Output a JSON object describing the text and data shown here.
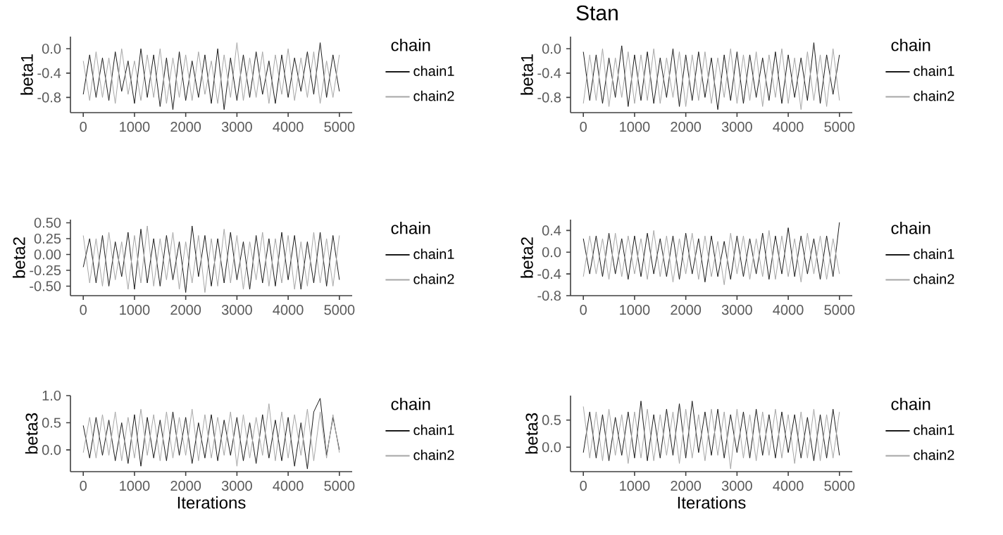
{
  "chart_data": [
    {
      "type": "line",
      "ylabel": "beta1",
      "legend_title": "chain",
      "legend": "right",
      "grid": false,
      "marker": "none",
      "line_style": "solid",
      "xlim": [
        -250,
        5250
      ],
      "ylim": [
        -1.05,
        0.2
      ],
      "xticks": [
        0,
        1000,
        2000,
        3000,
        4000,
        5000
      ],
      "yticks": [
        {
          "value": 0,
          "label": "0.0"
        },
        -0.4,
        -0.8
      ],
      "x": [
        0,
        125,
        250,
        375,
        500,
        625,
        750,
        875,
        1000,
        1125,
        1250,
        1375,
        1500,
        1625,
        1750,
        1875,
        2000,
        2125,
        2250,
        2375,
        2500,
        2625,
        2750,
        2875,
        3000,
        3125,
        3250,
        3375,
        3500,
        3625,
        3750,
        3875,
        4000,
        4125,
        4250,
        4375,
        4500,
        4625,
        4750,
        4875,
        5000
      ],
      "series": [
        {
          "name": "chain1",
          "color": "#1a1a1a",
          "values": [
            -0.75,
            -0.1,
            -0.8,
            -0.15,
            -0.85,
            -0.05,
            -0.7,
            -0.2,
            -0.9,
            0.0,
            -0.8,
            -0.1,
            -0.95,
            -0.15,
            -1.0,
            -0.05,
            -0.85,
            -0.2,
            -0.8,
            -0.1,
            -0.9,
            0.0,
            -1.0,
            -0.15,
            -0.85,
            -0.1,
            -0.8,
            -0.05,
            -0.75,
            -0.2,
            -0.9,
            -0.1,
            -0.8,
            -0.15,
            -0.7,
            -0.05,
            -0.75,
            0.1,
            -0.8,
            -0.1,
            -0.7
          ]
        },
        {
          "name": "chain2",
          "color": "#a6a6a6",
          "values": [
            -0.2,
            -0.85,
            -0.05,
            -0.8,
            -0.15,
            -0.9,
            0.0,
            -0.75,
            -0.2,
            -0.85,
            -0.1,
            -0.8,
            0.0,
            -0.9,
            -0.15,
            -0.8,
            -0.1,
            -0.85,
            -0.05,
            -0.75,
            -0.2,
            -0.9,
            -0.1,
            -0.8,
            0.1,
            -0.85,
            -0.15,
            -0.8,
            -0.05,
            -0.9,
            -0.1,
            -0.75,
            0.0,
            -0.85,
            -0.15,
            -0.8,
            -0.05,
            -0.9,
            -0.2,
            -0.8,
            -0.1
          ]
        }
      ]
    },
    {
      "type": "line",
      "title": "Stan",
      "ylabel": "beta1",
      "legend_title": "chain",
      "legend": "right",
      "grid": false,
      "marker": "none",
      "line_style": "solid",
      "xlim": [
        -250,
        5250
      ],
      "ylim": [
        -1.05,
        0.2
      ],
      "xticks": [
        0,
        1000,
        2000,
        3000,
        4000,
        5000
      ],
      "yticks": [
        {
          "value": 0,
          "label": "0.0"
        },
        -0.4,
        -0.8
      ],
      "x": [
        0,
        125,
        250,
        375,
        500,
        625,
        750,
        875,
        1000,
        1125,
        1250,
        1375,
        1500,
        1625,
        1750,
        1875,
        2000,
        2125,
        2250,
        2375,
        2500,
        2625,
        2750,
        2875,
        3000,
        3125,
        3250,
        3375,
        3500,
        3625,
        3750,
        3875,
        4000,
        4125,
        4250,
        4375,
        4500,
        4625,
        4750,
        4875,
        5000
      ],
      "series": [
        {
          "name": "chain1",
          "color": "#1a1a1a",
          "values": [
            -0.05,
            -0.85,
            -0.1,
            -0.9,
            -0.15,
            -0.8,
            0.05,
            -0.95,
            -0.1,
            -0.85,
            -0.05,
            -0.9,
            -0.15,
            -0.8,
            0.0,
            -0.95,
            -0.1,
            -0.85,
            -0.05,
            -0.8,
            -0.15,
            -1.0,
            -0.1,
            -0.85,
            -0.05,
            -0.9,
            -0.1,
            -0.8,
            -0.15,
            -0.85,
            -0.05,
            -0.9,
            -0.1,
            -0.8,
            -0.15,
            -0.85,
            0.1,
            -0.9,
            -0.1,
            -0.75,
            -0.1
          ]
        },
        {
          "name": "chain2",
          "color": "#a6a6a6",
          "values": [
            -0.9,
            -0.1,
            -0.85,
            0.0,
            -0.95,
            -0.15,
            -0.8,
            -0.05,
            -0.9,
            -0.1,
            -0.85,
            0.0,
            -0.9,
            -0.15,
            -0.8,
            -0.05,
            -0.95,
            -0.1,
            -0.85,
            -0.05,
            -0.9,
            -0.15,
            -0.8,
            0.0,
            -0.9,
            -0.1,
            -0.85,
            -0.05,
            -0.95,
            -0.1,
            -0.8,
            0.0,
            -0.9,
            -0.15,
            -1.0,
            -0.05,
            -0.85,
            -0.1,
            -0.95,
            0.0,
            -0.85
          ]
        }
      ]
    },
    {
      "type": "line",
      "ylabel": "beta2",
      "legend_title": "chain",
      "legend": "right",
      "grid": false,
      "marker": "none",
      "line_style": "solid",
      "xlim": [
        -250,
        5250
      ],
      "ylim": [
        -0.65,
        0.55
      ],
      "xticks": [
        0,
        1000,
        2000,
        3000,
        4000,
        5000
      ],
      "yticks": [
        {
          "value": 0.5,
          "label": "0.50"
        },
        0.25,
        {
          "value": 0,
          "label": "0.00"
        },
        -0.25,
        {
          "value": -0.5,
          "label": "-0.50"
        }
      ],
      "x": [
        0,
        125,
        250,
        375,
        500,
        625,
        750,
        875,
        1000,
        1125,
        1250,
        1375,
        1500,
        1625,
        1750,
        1875,
        2000,
        2125,
        2250,
        2375,
        2500,
        2625,
        2750,
        2875,
        3000,
        3125,
        3250,
        3375,
        3500,
        3625,
        3750,
        3875,
        4000,
        4125,
        4250,
        4375,
        4500,
        4625,
        4750,
        4875,
        5000
      ],
      "series": [
        {
          "name": "chain1",
          "color": "#1a1a1a",
          "values": [
            -0.2,
            0.25,
            -0.45,
            0.3,
            -0.5,
            0.2,
            -0.35,
            0.35,
            -0.55,
            0.4,
            -0.45,
            0.25,
            -0.5,
            0.3,
            -0.4,
            0.2,
            -0.6,
            0.45,
            -0.35,
            0.3,
            -0.5,
            0.25,
            -0.45,
            0.35,
            -0.4,
            0.2,
            -0.55,
            0.3,
            -0.45,
            0.25,
            -0.5,
            0.35,
            -0.4,
            0.3,
            -0.55,
            0.2,
            -0.45,
            0.35,
            -0.5,
            0.3,
            -0.4
          ]
        },
        {
          "name": "chain2",
          "color": "#a6a6a6",
          "values": [
            0.3,
            -0.45,
            0.25,
            -0.5,
            0.35,
            -0.4,
            0.2,
            -0.55,
            0.3,
            -0.45,
            0.45,
            -0.5,
            0.25,
            -0.4,
            0.35,
            -0.55,
            0.2,
            -0.45,
            0.3,
            -0.6,
            0.25,
            -0.5,
            0.4,
            -0.45,
            0.3,
            -0.55,
            0.2,
            -0.4,
            0.35,
            -0.5,
            0.25,
            -0.45,
            0.3,
            -0.55,
            0.2,
            -0.5,
            0.35,
            -0.45,
            0.25,
            -0.5,
            0.3
          ]
        }
      ]
    },
    {
      "type": "line",
      "ylabel": "beta2",
      "legend_title": "chain",
      "legend": "right",
      "grid": false,
      "marker": "none",
      "line_style": "solid",
      "xlim": [
        -250,
        5250
      ],
      "ylim": [
        -0.8,
        0.6
      ],
      "xticks": [
        0,
        1000,
        2000,
        3000,
        4000,
        5000
      ],
      "yticks": [
        0.4,
        {
          "value": 0,
          "label": "0.0"
        },
        -0.4,
        -0.8
      ],
      "x": [
        0,
        125,
        250,
        375,
        500,
        625,
        750,
        875,
        1000,
        1125,
        1250,
        1375,
        1500,
        1625,
        1750,
        1875,
        2000,
        2125,
        2250,
        2375,
        2500,
        2625,
        2750,
        2875,
        3000,
        3125,
        3250,
        3375,
        3500,
        3625,
        3750,
        3875,
        4000,
        4125,
        4250,
        4375,
        4500,
        4625,
        4750,
        4875,
        5000
      ],
      "series": [
        {
          "name": "chain1",
          "color": "#1a1a1a",
          "values": [
            0.25,
            -0.4,
            0.3,
            -0.45,
            0.35,
            -0.4,
            0.25,
            -0.5,
            0.3,
            -0.45,
            0.35,
            -0.4,
            0.25,
            -0.45,
            0.3,
            -0.5,
            0.35,
            -0.4,
            0.25,
            -0.55,
            0.3,
            -0.45,
            0.2,
            -0.5,
            0.3,
            -0.45,
            0.25,
            -0.4,
            0.35,
            -0.5,
            0.3,
            -0.4,
            0.45,
            -0.45,
            0.3,
            -0.4,
            0.25,
            -0.5,
            0.3,
            -0.45,
            0.55
          ]
        },
        {
          "name": "chain2",
          "color": "#a6a6a6",
          "values": [
            -0.45,
            0.3,
            -0.4,
            0.25,
            -0.5,
            0.35,
            -0.45,
            0.3,
            -0.4,
            0.25,
            -0.5,
            0.4,
            -0.45,
            0.3,
            -0.55,
            0.25,
            -0.4,
            0.35,
            -0.5,
            0.3,
            -0.45,
            0.2,
            -0.6,
            0.35,
            -0.4,
            0.3,
            -0.5,
            0.25,
            -0.45,
            0.4,
            -0.5,
            0.3,
            -0.45,
            0.25,
            -0.55,
            0.35,
            -0.4,
            0.3,
            -0.5,
            0.25,
            -0.4
          ]
        }
      ]
    },
    {
      "type": "line",
      "ylabel": "beta3",
      "xlabel": "Iterations",
      "legend_title": "chain",
      "legend": "right",
      "grid": false,
      "marker": "none",
      "line_style": "solid",
      "xlim": [
        -250,
        5250
      ],
      "ylim": [
        -0.4,
        1.0
      ],
      "xticks": [
        0,
        1000,
        2000,
        3000,
        4000,
        5000
      ],
      "yticks": [
        {
          "value": 0,
          "label": "0.0"
        },
        0.5,
        {
          "value": 1,
          "label": "1.0"
        }
      ],
      "x": [
        0,
        125,
        250,
        375,
        500,
        625,
        750,
        875,
        1000,
        1125,
        1250,
        1375,
        1500,
        1625,
        1750,
        1875,
        2000,
        2125,
        2250,
        2375,
        2500,
        2625,
        2750,
        2875,
        3000,
        3125,
        3250,
        3375,
        3500,
        3625,
        3750,
        3875,
        4000,
        4125,
        4250,
        4375,
        4500,
        4625,
        4750,
        4875,
        5000
      ],
      "series": [
        {
          "name": "chain1",
          "color": "#1a1a1a",
          "values": [
            0.45,
            -0.15,
            0.6,
            -0.1,
            0.55,
            -0.2,
            0.5,
            -0.25,
            0.65,
            -0.3,
            0.6,
            -0.15,
            0.55,
            -0.2,
            0.7,
            -0.1,
            0.6,
            -0.25,
            0.5,
            -0.15,
            0.65,
            -0.2,
            0.55,
            -0.1,
            0.6,
            -0.2,
            0.5,
            -0.25,
            0.65,
            -0.15,
            0.55,
            -0.2,
            0.6,
            -0.3,
            0.5,
            -0.35,
            0.7,
            0.95,
            -0.1,
            0.6,
            0.0
          ]
        },
        {
          "name": "chain2",
          "color": "#a6a6a6",
          "values": [
            -0.05,
            0.6,
            -0.15,
            0.65,
            -0.1,
            0.7,
            -0.2,
            0.6,
            -0.15,
            0.75,
            -0.1,
            0.65,
            -0.2,
            0.7,
            -0.15,
            0.6,
            -0.1,
            0.75,
            -0.2,
            0.65,
            -0.15,
            0.6,
            -0.1,
            0.7,
            -0.3,
            0.65,
            -0.15,
            0.6,
            -0.1,
            0.85,
            -0.2,
            0.7,
            -0.15,
            0.65,
            -0.1,
            0.75,
            -0.2,
            0.7,
            -0.15,
            0.65,
            -0.05
          ]
        }
      ]
    },
    {
      "type": "line",
      "ylabel": "beta3",
      "xlabel": "Iterations",
      "legend_title": "chain",
      "legend": "right",
      "grid": false,
      "marker": "none",
      "line_style": "solid",
      "xlim": [
        -250,
        5250
      ],
      "ylim": [
        -0.45,
        0.95
      ],
      "xticks": [
        0,
        1000,
        2000,
        3000,
        4000,
        5000
      ],
      "yticks": [
        {
          "value": 0,
          "label": "0.0"
        },
        0.5
      ],
      "x": [
        0,
        125,
        250,
        375,
        500,
        625,
        750,
        875,
        1000,
        1125,
        1250,
        1375,
        1500,
        1625,
        1750,
        1875,
        2000,
        2125,
        2250,
        2375,
        2500,
        2625,
        2750,
        2875,
        3000,
        3125,
        3250,
        3375,
        3500,
        3625,
        3750,
        3875,
        4000,
        4125,
        4250,
        4375,
        4500,
        4625,
        4750,
        4875,
        5000
      ],
      "series": [
        {
          "name": "chain1",
          "color": "#1a1a1a",
          "values": [
            -0.1,
            0.65,
            -0.2,
            0.6,
            -0.25,
            0.55,
            -0.15,
            0.65,
            -0.2,
            0.85,
            -0.25,
            0.6,
            -0.2,
            0.7,
            -0.15,
            0.8,
            -0.2,
            0.85,
            -0.1,
            0.65,
            -0.15,
            0.7,
            -0.2,
            0.6,
            -0.1,
            0.65,
            -0.2,
            0.7,
            -0.15,
            0.6,
            -0.2,
            0.65,
            -0.1,
            0.6,
            -0.2,
            0.55,
            -0.25,
            0.6,
            -0.2,
            0.7,
            -0.15
          ]
        },
        {
          "name": "chain2",
          "color": "#a6a6a6",
          "values": [
            0.75,
            -0.2,
            0.65,
            -0.25,
            0.7,
            -0.15,
            0.6,
            -0.3,
            0.65,
            -0.2,
            0.7,
            -0.25,
            0.6,
            -0.15,
            0.65,
            -0.3,
            0.7,
            -0.2,
            0.6,
            -0.25,
            0.7,
            -0.15,
            0.65,
            -0.4,
            0.7,
            -0.2,
            0.6,
            -0.25,
            0.65,
            -0.15,
            0.7,
            -0.2,
            0.6,
            -0.3,
            0.65,
            -0.2,
            0.7,
            -0.25,
            0.6,
            -0.2,
            0.65
          ]
        }
      ]
    }
  ]
}
